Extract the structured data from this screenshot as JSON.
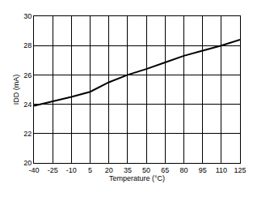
{
  "chart_data": {
    "type": "line",
    "x_label": "Temperature (°C)",
    "y_label": "IDD (mA)",
    "x": [
      -40,
      -25,
      -10,
      5,
      20,
      35,
      50,
      65,
      80,
      95,
      110,
      125
    ],
    "values": [
      23.9,
      24.2,
      24.5,
      24.85,
      25.5,
      26.0,
      26.4,
      26.85,
      27.3,
      27.65,
      28.0,
      28.4
    ],
    "color": "#000000",
    "xlim": [
      -40,
      125
    ],
    "xticks": [
      -40,
      -25,
      -10,
      5,
      20,
      35,
      50,
      65,
      80,
      95,
      110,
      125
    ],
    "ylim": [
      20,
      30
    ],
    "yticks": [
      20,
      22,
      24,
      26,
      28,
      30
    ],
    "grid": true
  }
}
